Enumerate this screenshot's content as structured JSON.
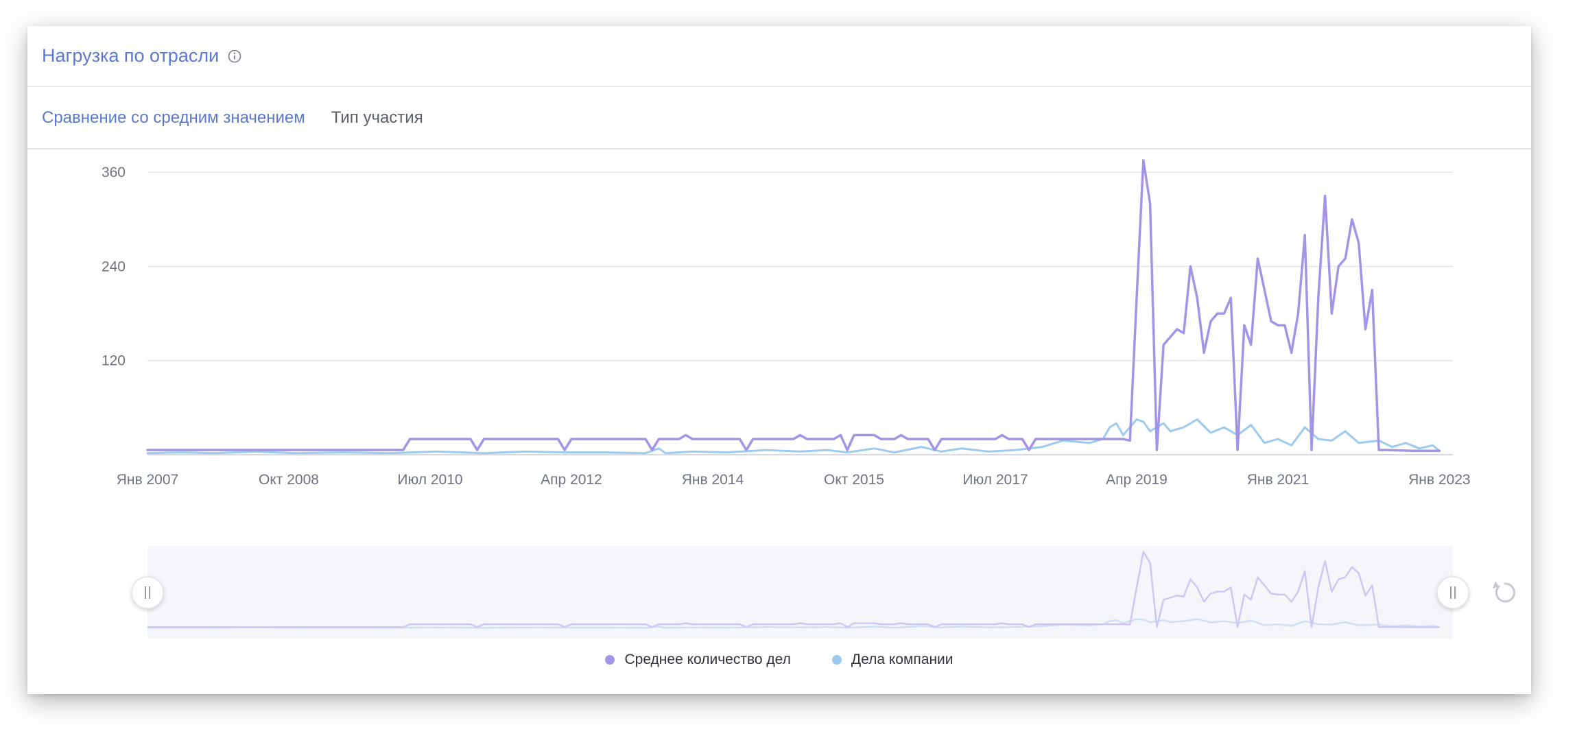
{
  "header": {
    "title": "Нагрузка по отрасли",
    "info_icon": "info-circle-icon"
  },
  "tabs": [
    {
      "label": "Сравнение со средним значением",
      "active": true
    },
    {
      "label": "Тип участия",
      "active": false
    }
  ],
  "colors": {
    "accent": "#5b79cf",
    "series_avg": "#a494e6",
    "series_company": "#9ccbef",
    "navigator_bg": "#f4f6f9",
    "grid": "#e4e6ec"
  },
  "chart_data": {
    "type": "line",
    "title": "",
    "xlabel": "",
    "ylabel": "",
    "ylim": [
      0,
      380
    ],
    "xlim": [
      "2007-01",
      "2023-03"
    ],
    "y_ticks": [
      120,
      240,
      360
    ],
    "x_ticks": [
      {
        "label": "Янв 2007",
        "date": "2007-01"
      },
      {
        "label": "Окт 2008",
        "date": "2008-10"
      },
      {
        "label": "Июл 2010",
        "date": "2010-07"
      },
      {
        "label": "Апр 2012",
        "date": "2012-04"
      },
      {
        "label": "Янв 2014",
        "date": "2014-01"
      },
      {
        "label": "Окт 2015",
        "date": "2015-10"
      },
      {
        "label": "Июл 2017",
        "date": "2017-07"
      },
      {
        "label": "Апр 2019",
        "date": "2019-04"
      },
      {
        "label": "Янв 2021",
        "date": "2021-01"
      },
      {
        "label": "Янв 2023",
        "date": "2023-01"
      }
    ],
    "grid": true,
    "legend_position": "bottom-center",
    "series": [
      {
        "name": "Среднее количество дел",
        "color": "#a494e6",
        "points": [
          [
            "2007-01",
            6
          ],
          [
            "2010-03",
            6
          ],
          [
            "2010-04",
            20
          ],
          [
            "2011-01",
            20
          ],
          [
            "2011-02",
            6
          ],
          [
            "2011-03",
            20
          ],
          [
            "2012-02",
            20
          ],
          [
            "2012-03",
            6
          ],
          [
            "2012-04",
            20
          ],
          [
            "2013-03",
            20
          ],
          [
            "2013-04",
            6
          ],
          [
            "2013-05",
            20
          ],
          [
            "2013-08",
            20
          ],
          [
            "2013-09",
            25
          ],
          [
            "2013-10",
            20
          ],
          [
            "2014-05",
            20
          ],
          [
            "2014-06",
            6
          ],
          [
            "2014-07",
            20
          ],
          [
            "2015-01",
            20
          ],
          [
            "2015-02",
            25
          ],
          [
            "2015-03",
            20
          ],
          [
            "2015-07",
            20
          ],
          [
            "2015-08",
            25
          ],
          [
            "2015-09",
            6
          ],
          [
            "2015-10",
            25
          ],
          [
            "2016-01",
            25
          ],
          [
            "2016-02",
            20
          ],
          [
            "2016-04",
            20
          ],
          [
            "2016-05",
            25
          ],
          [
            "2016-06",
            20
          ],
          [
            "2016-09",
            20
          ],
          [
            "2016-10",
            6
          ],
          [
            "2016-11",
            20
          ],
          [
            "2017-07",
            20
          ],
          [
            "2017-08",
            25
          ],
          [
            "2017-09",
            20
          ],
          [
            "2017-11",
            20
          ],
          [
            "2017-12",
            6
          ],
          [
            "2018-01",
            20
          ],
          [
            "2018-12",
            20
          ],
          [
            "2019-01",
            20
          ],
          [
            "2019-02",
            20
          ],
          [
            "2019-03",
            18
          ],
          [
            "2019-04",
            200
          ],
          [
            "2019-05",
            375
          ],
          [
            "2019-06",
            320
          ],
          [
            "2019-07",
            6
          ],
          [
            "2019-08",
            140
          ],
          [
            "2019-09",
            150
          ],
          [
            "2019-10",
            160
          ],
          [
            "2019-11",
            155
          ],
          [
            "2019-12",
            240
          ],
          [
            "2020-01",
            200
          ],
          [
            "2020-02",
            130
          ],
          [
            "2020-03",
            170
          ],
          [
            "2020-04",
            180
          ],
          [
            "2020-05",
            180
          ],
          [
            "2020-06",
            200
          ],
          [
            "2020-07",
            6
          ],
          [
            "2020-08",
            165
          ],
          [
            "2020-09",
            140
          ],
          [
            "2020-10",
            250
          ],
          [
            "2020-11",
            210
          ],
          [
            "2020-12",
            170
          ],
          [
            "2021-01",
            165
          ],
          [
            "2021-02",
            165
          ],
          [
            "2021-03",
            130
          ],
          [
            "2021-04",
            180
          ],
          [
            "2021-05",
            280
          ],
          [
            "2021-06",
            6
          ],
          [
            "2021-07",
            200
          ],
          [
            "2021-08",
            330
          ],
          [
            "2021-09",
            180
          ],
          [
            "2021-10",
            240
          ],
          [
            "2021-11",
            250
          ],
          [
            "2021-12",
            300
          ],
          [
            "2022-01",
            270
          ],
          [
            "2022-02",
            160
          ],
          [
            "2022-03",
            210
          ],
          [
            "2022-04",
            6
          ],
          [
            "2022-05",
            6
          ],
          [
            "2022-09",
            5
          ],
          [
            "2023-01",
            5
          ]
        ]
      },
      {
        "name": "Дела компании",
        "color": "#9ccbef",
        "points": [
          [
            "2007-01",
            2
          ],
          [
            "2007-06",
            3
          ],
          [
            "2007-11",
            2
          ],
          [
            "2008-05",
            4
          ],
          [
            "2008-11",
            2
          ],
          [
            "2009-06",
            3
          ],
          [
            "2010-01",
            2
          ],
          [
            "2010-08",
            4
          ],
          [
            "2011-03",
            2
          ],
          [
            "2011-09",
            4
          ],
          [
            "2012-03",
            3
          ],
          [
            "2012-09",
            3
          ],
          [
            "2013-03",
            2
          ],
          [
            "2013-05",
            8
          ],
          [
            "2013-06",
            2
          ],
          [
            "2013-10",
            4
          ],
          [
            "2014-03",
            3
          ],
          [
            "2014-09",
            6
          ],
          [
            "2015-02",
            4
          ],
          [
            "2015-06",
            6
          ],
          [
            "2015-09",
            3
          ],
          [
            "2016-01",
            8
          ],
          [
            "2016-04",
            3
          ],
          [
            "2016-08",
            10
          ],
          [
            "2016-11",
            4
          ],
          [
            "2017-02",
            8
          ],
          [
            "2017-06",
            4
          ],
          [
            "2017-10",
            6
          ],
          [
            "2018-02",
            10
          ],
          [
            "2018-05",
            18
          ],
          [
            "2018-09",
            15
          ],
          [
            "2018-11",
            20
          ],
          [
            "2018-12",
            35
          ],
          [
            "2019-01",
            40
          ],
          [
            "2019-02",
            25
          ],
          [
            "2019-03",
            35
          ],
          [
            "2019-04",
            45
          ],
          [
            "2019-05",
            42
          ],
          [
            "2019-06",
            30
          ],
          [
            "2019-08",
            40
          ],
          [
            "2019-09",
            30
          ],
          [
            "2019-11",
            35
          ],
          [
            "2020-01",
            45
          ],
          [
            "2020-03",
            28
          ],
          [
            "2020-05",
            35
          ],
          [
            "2020-07",
            25
          ],
          [
            "2020-09",
            38
          ],
          [
            "2020-11",
            15
          ],
          [
            "2021-01",
            20
          ],
          [
            "2021-03",
            12
          ],
          [
            "2021-05",
            35
          ],
          [
            "2021-07",
            20
          ],
          [
            "2021-09",
            18
          ],
          [
            "2021-11",
            30
          ],
          [
            "2022-01",
            15
          ],
          [
            "2022-04",
            18
          ],
          [
            "2022-06",
            10
          ],
          [
            "2022-08",
            15
          ],
          [
            "2022-10",
            8
          ],
          [
            "2022-12",
            12
          ],
          [
            "2023-01",
            5
          ]
        ]
      }
    ]
  },
  "navigator": {
    "reset_icon": "reset-icon",
    "left_handle_icon": "drag-handle-icon",
    "right_handle_icon": "drag-handle-icon"
  }
}
